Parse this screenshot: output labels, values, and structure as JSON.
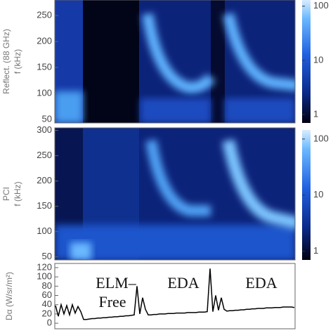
{
  "chart_data": [
    {
      "type": "heatmap",
      "label": "Reflect. (88 GHz)",
      "ylabel": "f (kHz)",
      "ylim": [
        43,
        280
      ],
      "yticks": [
        50,
        100,
        150,
        200,
        250
      ],
      "colorbar": {
        "log": true,
        "lim": [
          0.7,
          130
        ],
        "ticks": [
          1,
          10,
          100
        ]
      }
    },
    {
      "type": "heatmap",
      "label": "PCI",
      "ylabel": "f (kHz)",
      "ylim": [
        44,
        305
      ],
      "yticks": [
        50,
        100,
        150,
        200,
        250,
        300
      ],
      "colorbar": {
        "log": true,
        "lim": [
          0.7,
          145
        ],
        "ticks": [
          1,
          10,
          100
        ]
      }
    },
    {
      "type": "line",
      "ylabel": "Dα (W/sr/m²)",
      "color": "#000000",
      "ylim": [
        -12,
        129
      ],
      "yticks": [
        0,
        20,
        40,
        60,
        80,
        100,
        120
      ],
      "annotations": [
        "ELM–",
        "Free",
        "EDA",
        "EDA"
      ],
      "values": [
        38,
        15,
        40,
        20,
        38,
        18,
        40,
        22,
        36,
        25,
        8,
        8,
        9,
        10,
        10,
        11,
        11,
        12,
        12,
        13,
        13,
        14,
        14,
        15,
        15,
        16,
        16,
        17,
        18,
        80,
        20,
        55,
        30,
        18,
        18,
        19,
        19,
        20,
        20,
        20,
        21,
        21,
        21,
        22,
        22,
        22,
        22,
        23,
        23,
        23,
        23,
        24,
        24,
        24,
        25,
        118,
        25,
        60,
        28,
        55,
        30,
        26,
        27,
        27,
        28,
        28,
        29,
        29,
        30,
        30,
        31,
        31,
        32,
        32,
        32,
        33,
        33,
        33,
        34,
        34,
        34,
        35,
        35,
        35,
        35,
        34
      ]
    }
  ]
}
